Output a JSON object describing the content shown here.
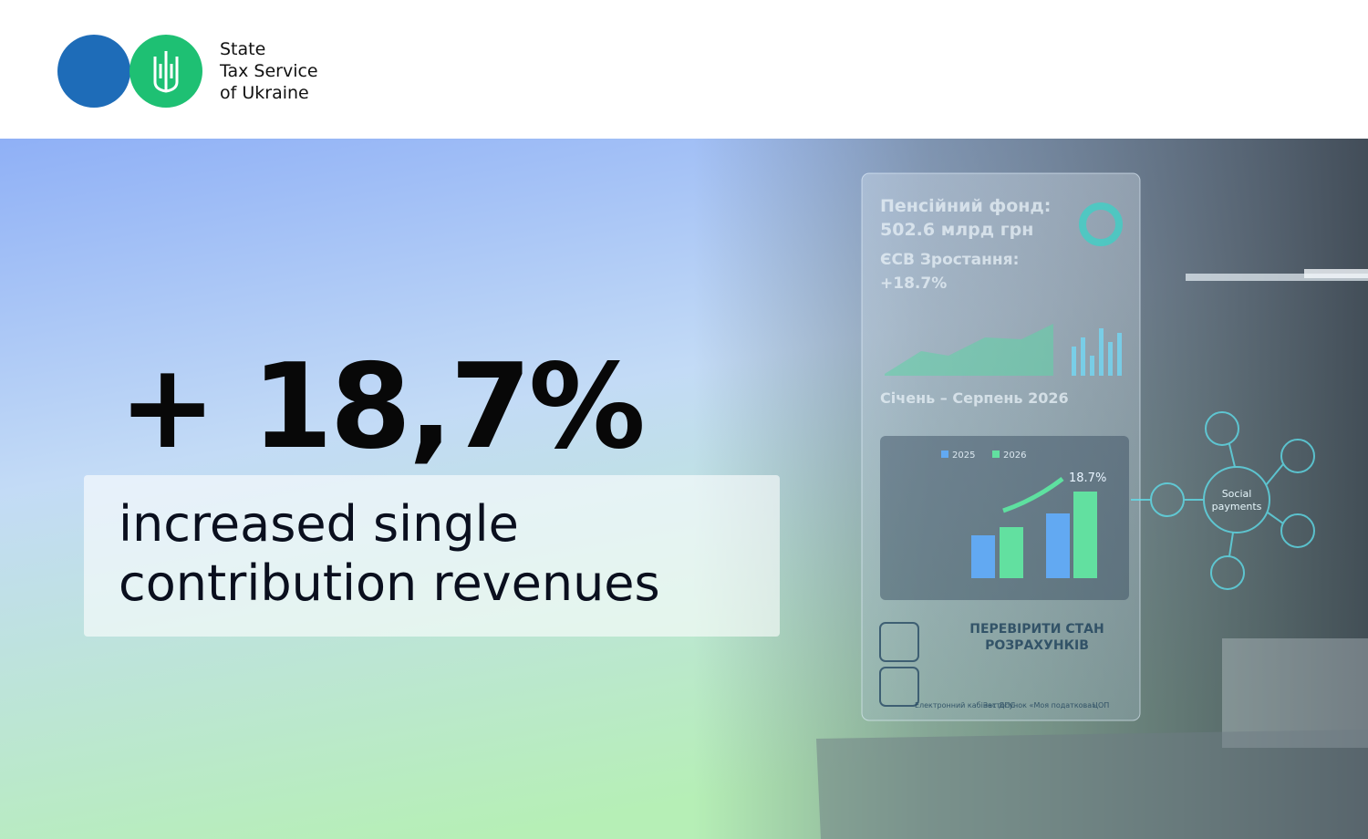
{
  "header": {
    "org_lines": [
      "State",
      "Tax Service",
      "of Ukraine"
    ]
  },
  "banner": {
    "headline": "+ 18,7%",
    "subtitle_lines": [
      "increased single",
      "contribution revenues"
    ]
  },
  "screen": {
    "lines": [
      "Пенсійний фонд:",
      "502.6 млрд грн",
      "ЄСВ Зростання:",
      "+18.7%"
    ],
    "period": "Січень – Серпень 2026",
    "legend": [
      "2025",
      "2026"
    ],
    "growth": "18.7%",
    "check": [
      "ПЕРЕВІРИТИ СТАН",
      "РОЗРАХУНКІВ"
    ],
    "services": [
      "Електронний кабінет ДПС",
      "Застосунок «Моя податкова»",
      "ЦОП"
    ],
    "hub": [
      "Social",
      "payments"
    ]
  }
}
